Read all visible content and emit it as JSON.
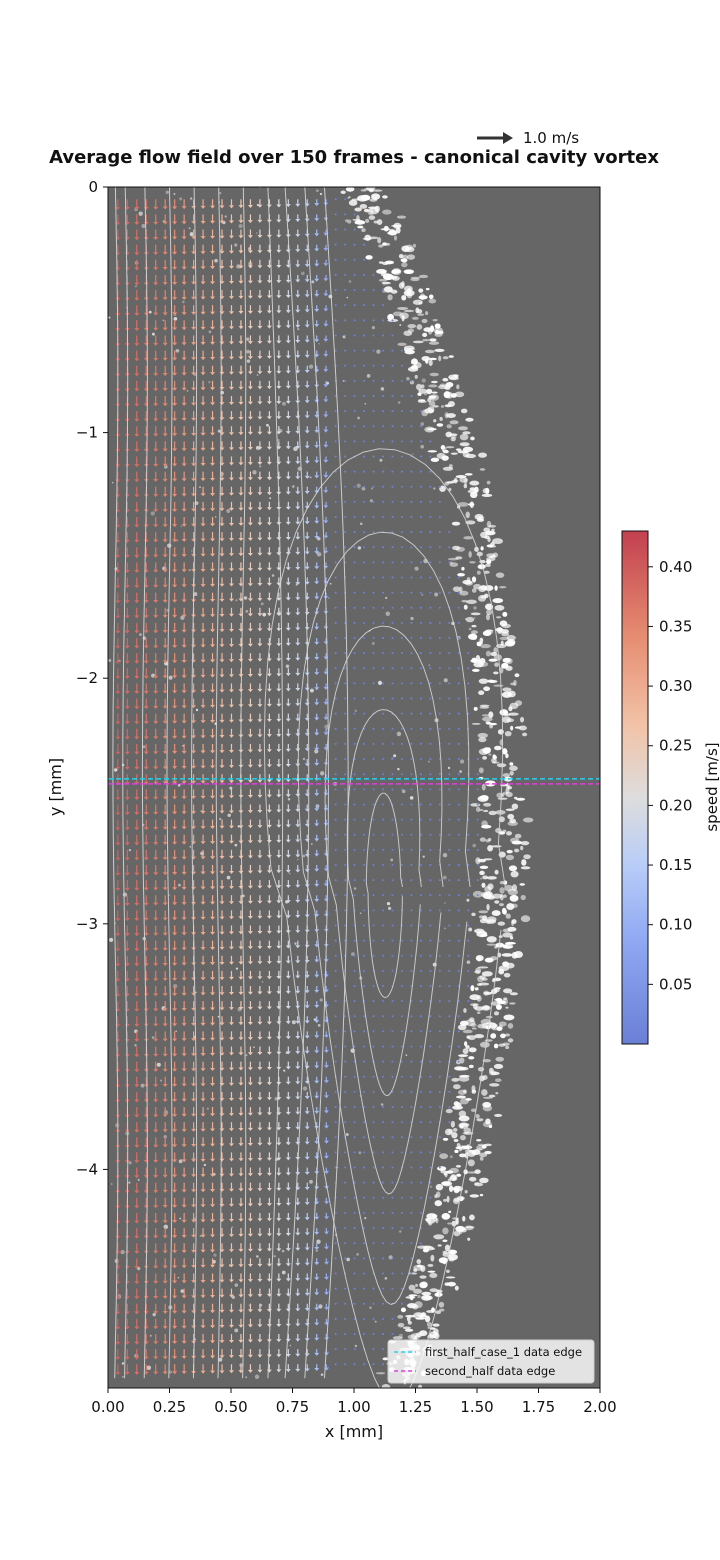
{
  "chart_data": {
    "type": "quiver",
    "title": "Average flow field over 150 frames - canonical cavity vortex",
    "xlabel": "x [mm]",
    "ylabel": "y [mm]",
    "xlim": [
      0.0,
      2.0
    ],
    "ylim": [
      -4.89,
      0.0
    ],
    "xticks": [
      0.0,
      0.25,
      0.5,
      0.75,
      1.0,
      1.25,
      1.5,
      1.75,
      2.0
    ],
    "xtick_labels": [
      "0.00",
      "0.25",
      "0.50",
      "0.75",
      "1.00",
      "1.25",
      "1.50",
      "1.75",
      "2.00"
    ],
    "yticks": [
      0,
      -1,
      -2,
      -3,
      -4
    ],
    "ytick_labels": [
      "0",
      "−1",
      "−2",
      "−3",
      "−4"
    ],
    "colorbar": {
      "label": "speed [m/s]",
      "range": [
        0.0,
        0.43
      ],
      "ticks": [
        0.05,
        0.1,
        0.15,
        0.2,
        0.25,
        0.3,
        0.35,
        0.4
      ],
      "tick_labels": [
        "0.05",
        "0.10",
        "0.15",
        "0.20",
        "0.25",
        "0.30",
        "0.35",
        "0.40"
      ],
      "colormap": "coolwarm"
    },
    "quiver_key": {
      "label": "1.0 m/s",
      "value": 1.0
    },
    "reference_lines": [
      {
        "y": -2.41,
        "color": "#22d3ee",
        "style": "dashed",
        "label": "first_half_case_1 data edge"
      },
      {
        "y": -2.43,
        "color": "#e040e0",
        "style": "dashed",
        "label": "second_half data edge"
      }
    ],
    "legend_position": "lower right",
    "flow_description_profile": {
      "x": [
        0.0,
        0.1,
        0.2,
        0.3,
        0.4,
        0.5,
        0.6,
        0.7,
        0.8,
        0.9
      ],
      "downward_speed": [
        0.4,
        0.38,
        0.36,
        0.33,
        0.3,
        0.27,
        0.24,
        0.21,
        0.16,
        0.08
      ]
    },
    "vortex_center": {
      "x": 1.12,
      "y": -2.85
    }
  },
  "colors": {
    "background": "#666666",
    "reference_cyan": "#22d3ee",
    "reference_magenta": "#e040e0",
    "streamline": "#d8d8d8"
  }
}
